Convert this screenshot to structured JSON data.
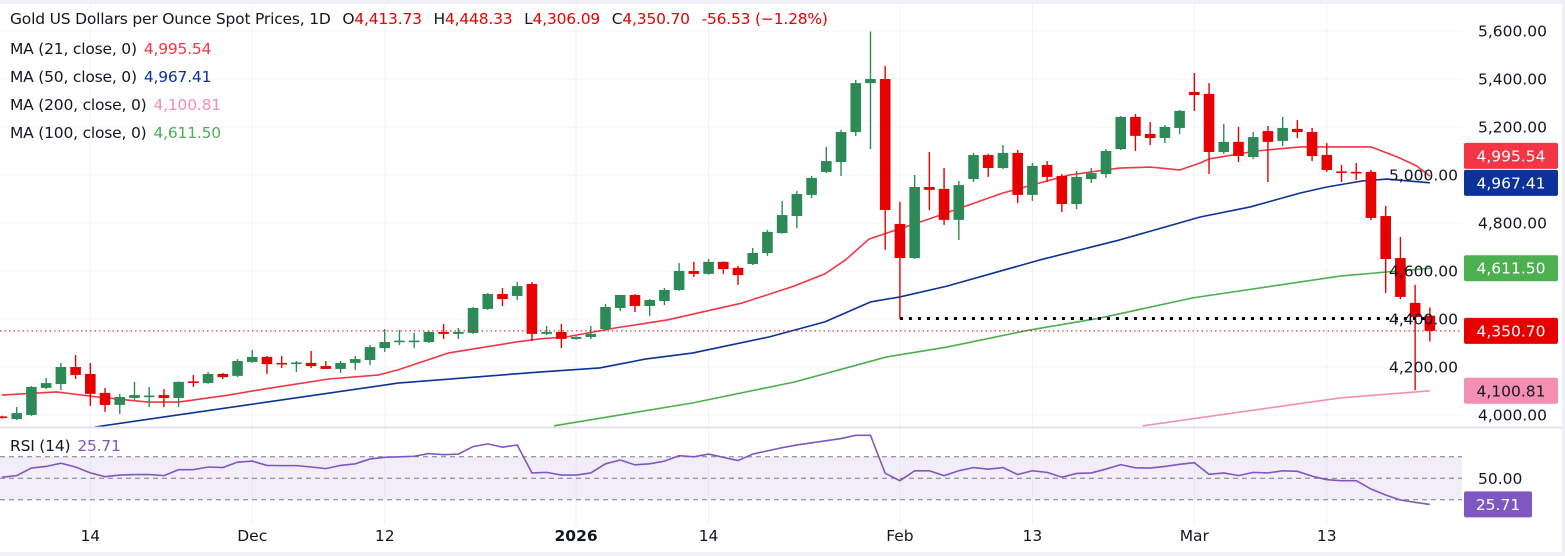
{
  "header": {
    "title": "Gold US Dollars per Ounce Spot Prices, 1D",
    "open_label": "O",
    "open": "4,413.73",
    "high_label": "H",
    "high": "4,448.33",
    "low_label": "L",
    "low": "4,306.09",
    "close_label": "C",
    "close": "4,350.70",
    "change": "-56.53 (−1.28%)"
  },
  "indicators": [
    {
      "label": "MA (21, close, 0)",
      "value": "4,995.54",
      "color": "#f23645"
    },
    {
      "label": "MA (50, close, 0)",
      "value": "4,967.41",
      "color": "#0c3299"
    },
    {
      "label": "MA (200, close, 0)",
      "value": "4,100.81",
      "color": "#f48fb1"
    },
    {
      "label": "MA (100, close, 0)",
      "value": "4,611.50",
      "color": "#4caf50"
    }
  ],
  "rsi_legend": {
    "label": "RSI (14)",
    "value": "25.71",
    "color": "#7e57c2"
  },
  "colors": {
    "up": "#2d8a57",
    "down": "#e60000",
    "grid": "#f0f3fa",
    "rsi_band": "#7e57c2"
  },
  "chart_data": [
    {
      "type": "candlestick",
      "title": "Gold US Dollars per Ounce Spot Prices, 1D",
      "ylim": [
        3950,
        5730
      ],
      "y_ticks": [
        "5,600.00",
        "5,400.00",
        "5,200.00",
        "5,000.00",
        "4,800.00",
        "4,600.00",
        "4,400.00",
        "4,200.00",
        "4,000.00"
      ],
      "y_tick_values": [
        5600,
        5400,
        5200,
        5000,
        4800,
        4600,
        4400,
        4200,
        4000
      ],
      "x_ticks": [
        {
          "label": "14",
          "index": 6
        },
        {
          "label": "Dec",
          "index": 17
        },
        {
          "label": "12",
          "index": 26
        },
        {
          "label": "2026",
          "index": 39,
          "bold": true
        },
        {
          "label": "14",
          "index": 48
        },
        {
          "label": "Feb",
          "index": 61
        },
        {
          "label": "13",
          "index": 70
        },
        {
          "label": "Mar",
          "index": 81
        },
        {
          "label": "13",
          "index": 90
        }
      ],
      "grid": true,
      "ohlc_fields": [
        "open",
        "high",
        "low",
        "close"
      ],
      "candles": [
        [
          3994,
          3997,
          3985,
          3989
        ],
        [
          3983,
          4033,
          3979,
          4008
        ],
        [
          4000,
          4121,
          3996,
          4117
        ],
        [
          4113,
          4154,
          4108,
          4133
        ],
        [
          4129,
          4217,
          4104,
          4200
        ],
        [
          4200,
          4250,
          4150,
          4167
        ],
        [
          4171,
          4217,
          4038,
          4088
        ],
        [
          4092,
          4113,
          4013,
          4042
        ],
        [
          4042,
          4088,
          4004,
          4075
        ],
        [
          4071,
          4138,
          4063,
          4083
        ],
        [
          4079,
          4117,
          4033,
          4081
        ],
        [
          4083,
          4108,
          4033,
          4071
        ],
        [
          4071,
          4140,
          4033,
          4138
        ],
        [
          4140,
          4167,
          4117,
          4136
        ],
        [
          4133,
          4179,
          4130,
          4171
        ],
        [
          4171,
          4175,
          4150,
          4158
        ],
        [
          4163,
          4233,
          4158,
          4225
        ],
        [
          4221,
          4271,
          4217,
          4242
        ],
        [
          4242,
          4246,
          4171,
          4212
        ],
        [
          4217,
          4246,
          4196,
          4213
        ],
        [
          4215,
          4225,
          4179,
          4219
        ],
        [
          4217,
          4267,
          4196,
          4204
        ],
        [
          4204,
          4225,
          4192,
          4192
        ],
        [
          4192,
          4225,
          4175,
          4217
        ],
        [
          4217,
          4246,
          4188,
          4233
        ],
        [
          4229,
          4292,
          4208,
          4283
        ],
        [
          4279,
          4358,
          4263,
          4304
        ],
        [
          4304,
          4354,
          4292,
          4310
        ],
        [
          4308,
          4342,
          4279,
          4310
        ],
        [
          4304,
          4350,
          4300,
          4346
        ],
        [
          4346,
          4379,
          4317,
          4338
        ],
        [
          4338,
          4363,
          4317,
          4346
        ],
        [
          4342,
          4450,
          4338,
          4446
        ],
        [
          4442,
          4508,
          4438,
          4504
        ],
        [
          4504,
          4529,
          4454,
          4483
        ],
        [
          4496,
          4554,
          4479,
          4537
        ],
        [
          4546,
          4554,
          4308,
          4338
        ],
        [
          4338,
          4371,
          4333,
          4346
        ],
        [
          4346,
          4379,
          4279,
          4317
        ],
        [
          4317,
          4330,
          4313,
          4325
        ],
        [
          4325,
          4371,
          4317,
          4338
        ],
        [
          4358,
          4463,
          4350,
          4450
        ],
        [
          4446,
          4500,
          4433,
          4500
        ],
        [
          4500,
          4504,
          4429,
          4454
        ],
        [
          4454,
          4483,
          4413,
          4479
        ],
        [
          4475,
          4529,
          4458,
          4521
        ],
        [
          4521,
          4633,
          4517,
          4600
        ],
        [
          4600,
          4638,
          4575,
          4588
        ],
        [
          4588,
          4650,
          4585,
          4638
        ],
        [
          4638,
          4640,
          4588,
          4608
        ],
        [
          4613,
          4621,
          4542,
          4583
        ],
        [
          4629,
          4696,
          4625,
          4675
        ],
        [
          4675,
          4771,
          4663,
          4763
        ],
        [
          4758,
          4892,
          4755,
          4833
        ],
        [
          4829,
          4933,
          4779,
          4921
        ],
        [
          4917,
          4996,
          4904,
          4988
        ],
        [
          5013,
          5117,
          5008,
          5058
        ],
        [
          5054,
          5188,
          4996,
          5179
        ],
        [
          5179,
          5396,
          5163,
          5383
        ],
        [
          5383,
          5598,
          5108,
          5400
        ],
        [
          5400,
          5454,
          4688,
          4854
        ],
        [
          4796,
          4888,
          4402,
          4654
        ],
        [
          4654,
          5000,
          4650,
          4950
        ],
        [
          4950,
          5096,
          4854,
          4938
        ],
        [
          4942,
          5029,
          4792,
          4813
        ],
        [
          4813,
          4975,
          4729,
          4958
        ],
        [
          4983,
          5092,
          4971,
          5083
        ],
        [
          5083,
          5088,
          4992,
          5029
        ],
        [
          5029,
          5125,
          5025,
          5092
        ],
        [
          5092,
          5104,
          4883,
          4917
        ],
        [
          4917,
          5050,
          4892,
          5038
        ],
        [
          5042,
          5058,
          4971,
          4992
        ],
        [
          4996,
          5004,
          4846,
          4879
        ],
        [
          4879,
          5017,
          4858,
          4992
        ],
        [
          4983,
          5029,
          4967,
          5008
        ],
        [
          5004,
          5108,
          4988,
          5100
        ],
        [
          5108,
          5246,
          5104,
          5242
        ],
        [
          5242,
          5254,
          5100,
          5163
        ],
        [
          5171,
          5221,
          5125,
          5154
        ],
        [
          5154,
          5208,
          5133,
          5200
        ],
        [
          5196,
          5271,
          5171,
          5267
        ],
        [
          5346,
          5425,
          5267,
          5333
        ],
        [
          5338,
          5383,
          5004,
          5096
        ],
        [
          5096,
          5213,
          5088,
          5138
        ],
        [
          5138,
          5200,
          5054,
          5079
        ],
        [
          5075,
          5179,
          5067,
          5158
        ],
        [
          5183,
          5204,
          4971,
          5138
        ],
        [
          5142,
          5242,
          5121,
          5196
        ],
        [
          5192,
          5229,
          5154,
          5179
        ],
        [
          5179,
          5196,
          5058,
          5079
        ],
        [
          5083,
          5133,
          5013,
          5021
        ],
        [
          5015,
          5042,
          4971,
          5011
        ],
        [
          5013,
          5050,
          4979,
          5010
        ],
        [
          5013,
          5021,
          4812,
          4821
        ],
        [
          4829,
          4871,
          4508,
          4650
        ],
        [
          4654,
          4742,
          4483,
          4492
        ],
        [
          4467,
          4542,
          4104,
          4408
        ],
        [
          4413.73,
          4448.33,
          4306.09,
          4350.7
        ]
      ],
      "moving_averages": [
        {
          "name": "MA (21, close, 0)",
          "color": "#f23645",
          "last": 4995.54,
          "tag": "4,995.54",
          "tag_text_color": "#ffffff",
          "points": [
            [
              0,
              4083
            ],
            [
              3.7,
              4096
            ],
            [
              6.5,
              4075
            ],
            [
              9.9,
              4054
            ],
            [
              12,
              4054
            ],
            [
              15.4,
              4083
            ],
            [
              17.8,
              4108
            ],
            [
              22.2,
              4150
            ],
            [
              25.6,
              4167
            ],
            [
              26.9,
              4188
            ],
            [
              30.3,
              4258
            ],
            [
              34.9,
              4304
            ],
            [
              36.5,
              4317
            ],
            [
              38.3,
              4325
            ],
            [
              41.7,
              4363
            ],
            [
              45.2,
              4396
            ],
            [
              50.3,
              4467
            ],
            [
              53.8,
              4537
            ],
            [
              55.9,
              4588
            ],
            [
              57.3,
              4646
            ],
            [
              58.9,
              4733
            ],
            [
              60.1,
              4758
            ],
            [
              63,
              4817
            ],
            [
              68,
              4925
            ],
            [
              72.5,
              5000
            ],
            [
              75.9,
              5029
            ],
            [
              78,
              5033
            ],
            [
              80,
              5021
            ],
            [
              81.4,
              5050
            ],
            [
              82,
              5067
            ],
            [
              85.2,
              5100
            ],
            [
              88.2,
              5117
            ],
            [
              92,
              5117
            ],
            [
              93,
              5117
            ],
            [
              94.8,
              5075
            ],
            [
              96.1,
              5038
            ],
            [
              97,
              4995.54
            ]
          ]
        },
        {
          "name": "MA (50, close, 0)",
          "color": "#0c3299",
          "last": 4967.41,
          "tag": "4,967.41",
          "tag_text_color": "#ffffff",
          "points": [
            [
              6.3,
              3950
            ],
            [
              26.9,
              4133
            ],
            [
              36.5,
              4179
            ],
            [
              40.6,
              4196
            ],
            [
              43.7,
              4233
            ],
            [
              46.9,
              4258
            ],
            [
              52.1,
              4325
            ],
            [
              55.9,
              4388
            ],
            [
              59,
              4471
            ],
            [
              61,
              4492
            ],
            [
              64.2,
              4537
            ],
            [
              70.5,
              4646
            ],
            [
              75.9,
              4729
            ],
            [
              81.4,
              4825
            ],
            [
              84.8,
              4867
            ],
            [
              88.2,
              4925
            ],
            [
              90,
              4950
            ],
            [
              92.4,
              4975
            ],
            [
              94.1,
              4983
            ],
            [
              97,
              4967.41
            ]
          ]
        },
        {
          "name": "MA (200, close, 0)",
          "color": "#f48fb1",
          "last": 4100.81,
          "tag": "4,100.81",
          "tag_text_color": "#131722",
          "points": [
            [
              77.5,
              3955
            ],
            [
              90.9,
              4071
            ],
            [
              97,
              4100.81
            ]
          ]
        },
        {
          "name": "MA (100, close, 0)",
          "color": "#4caf50",
          "last": 4611.5,
          "tag": "4,611.50",
          "tag_text_color": "#ffffff",
          "points": [
            [
              37.5,
              3955
            ],
            [
              46.9,
              4050
            ],
            [
              53.8,
              4137
            ],
            [
              60.1,
              4242
            ],
            [
              64.2,
              4283
            ],
            [
              69.8,
              4354
            ],
            [
              74.6,
              4404
            ],
            [
              80.9,
              4488
            ],
            [
              90.9,
              4579
            ],
            [
              97,
              4611.5
            ]
          ]
        }
      ],
      "last_price": {
        "value": 4350.7,
        "tag": "4,350.70",
        "color": "#e60000"
      },
      "horizontal_line": {
        "value": 4402,
        "from_index": 61,
        "to_index": 97,
        "color": "#000000",
        "style": "dotted"
      }
    },
    {
      "type": "line",
      "title": "RSI (14)",
      "ylim": [
        20,
        90
      ],
      "levels": [
        70,
        50,
        30
      ],
      "band": [
        30,
        70
      ],
      "y_ticks": [
        "50.00"
      ],
      "y_tick_values": [
        50
      ],
      "last": {
        "value": 25.71,
        "tag": "25.71",
        "color": "#7e57c2"
      },
      "values": [
        51,
        52.5,
        59.5,
        61,
        64,
        60.5,
        55,
        51.5,
        53,
        53.5,
        53.5,
        52.5,
        58,
        58,
        60.5,
        60,
        65,
        66,
        62,
        61.8,
        61.8,
        60.5,
        59,
        62,
        63.5,
        68,
        69.5,
        70,
        70.5,
        73,
        72,
        72.5,
        79.5,
        82,
        79,
        81,
        55,
        55.5,
        53,
        53,
        55,
        63.5,
        67,
        62.5,
        63.5,
        66,
        71,
        70,
        72.5,
        69.5,
        66.5,
        72.5,
        75.5,
        78.5,
        81,
        83,
        85,
        87,
        90,
        90,
        54.6,
        47.8,
        57,
        57,
        52.5,
        57,
        60,
        58.5,
        60,
        53.5,
        57,
        55.5,
        51,
        54.5,
        55,
        58.6,
        62.7,
        59.8,
        59.5,
        61,
        63,
        64.5,
        53.7,
        55,
        52.5,
        55.5,
        55,
        57,
        56.5,
        52,
        48.7,
        47.8,
        47.8,
        40,
        34.5,
        29.8,
        27.7,
        25.71
      ]
    }
  ]
}
